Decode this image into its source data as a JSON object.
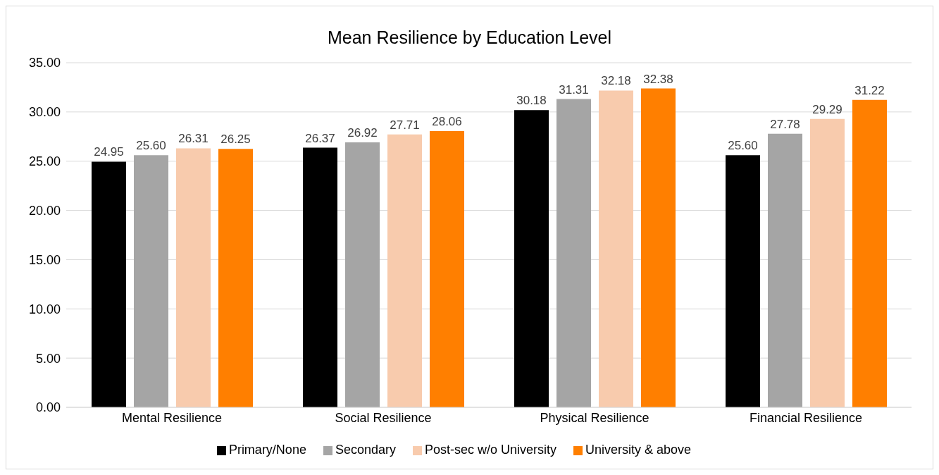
{
  "chart_data": {
    "type": "bar",
    "title": "Mean Resilience by Education Level",
    "categories": [
      "Mental Resilience",
      "Social Resilience",
      "Physical Resilience",
      "Financial Resilience"
    ],
    "series": [
      {
        "name": "Primary/None",
        "color": "#000000",
        "values": [
          24.95,
          26.37,
          30.18,
          25.6
        ],
        "value_labels": [
          "24.95",
          "26.37",
          "30.18",
          "25.60"
        ]
      },
      {
        "name": "Secondary",
        "color": "#a5a5a5",
        "values": [
          25.6,
          26.92,
          31.31,
          27.78
        ],
        "value_labels": [
          "25.60",
          "26.92",
          "31.31",
          "27.78"
        ]
      },
      {
        "name": "Post-sec w/o University",
        "color": "#f8cbad",
        "values": [
          26.31,
          27.71,
          32.18,
          29.29
        ],
        "value_labels": [
          "26.31",
          "27.71",
          "32.18",
          "29.29"
        ]
      },
      {
        "name": "University & above",
        "color": "#ff7f00",
        "values": [
          26.25,
          28.06,
          32.38,
          31.22
        ],
        "value_labels": [
          "26.25",
          "28.06",
          "32.38",
          "31.22"
        ]
      }
    ],
    "ylim": [
      0,
      35
    ],
    "yticks": [
      {
        "value": 0,
        "label": "0.00"
      },
      {
        "value": 5,
        "label": "5.00"
      },
      {
        "value": 10,
        "label": "10.00"
      },
      {
        "value": 15,
        "label": "15.00"
      },
      {
        "value": 20,
        "label": "20.00"
      },
      {
        "value": 25,
        "label": "25.00"
      },
      {
        "value": 30,
        "label": "30.00"
      },
      {
        "value": 35,
        "label": "35.00"
      }
    ],
    "grid": "y",
    "legend": "bottom"
  }
}
